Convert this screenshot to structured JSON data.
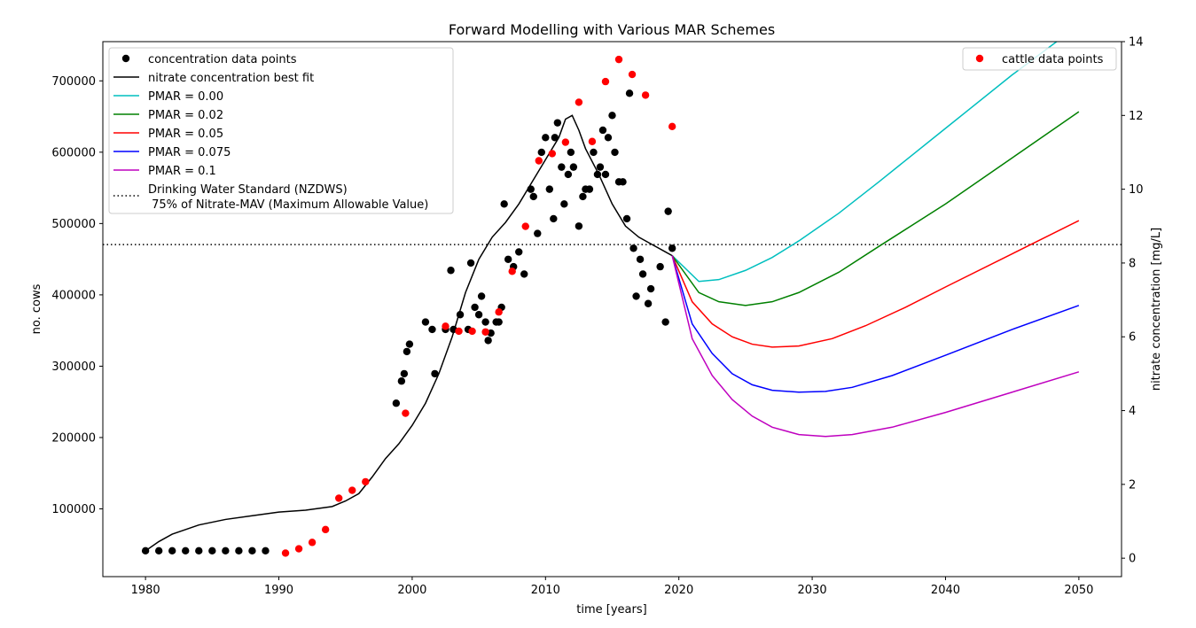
{
  "chart_data": {
    "type": "line",
    "title": "Forward Modelling with Various MAR Schemes",
    "xlabel": "time [years]",
    "ylabel_left": "no. cows",
    "ylabel_right": "nitrate concentration [mg/L]",
    "xlim": [
      1976.8,
      2053.2
    ],
    "ylim_left": [
      5000,
      755000
    ],
    "ylim_right": [
      -0.5,
      14
    ],
    "x_ticks": [
      "1980",
      "1990",
      "2000",
      "2010",
      "2020",
      "2030",
      "2040",
      "2050"
    ],
    "y_left_ticks": [
      "100000",
      "200000",
      "300000",
      "400000",
      "500000",
      "600000",
      "700000"
    ],
    "y_right_ticks": [
      "0",
      "2",
      "4",
      "6",
      "8",
      "10",
      "12",
      "14"
    ],
    "legend_left": [
      {
        "label": "concentration data points",
        "color": "#000000",
        "kind": "marker"
      },
      {
        "label": "nitrate concentration best fit",
        "color": "#000000",
        "kind": "line"
      },
      {
        "label": "PMAR = 0.00",
        "color": "#00bfbf",
        "kind": "line"
      },
      {
        "label": "PMAR = 0.02",
        "color": "#008000",
        "kind": "line"
      },
      {
        "label": "PMAR = 0.05",
        "color": "#ff0000",
        "kind": "line"
      },
      {
        "label": "PMAR = 0.075",
        "color": "#0000ff",
        "kind": "line"
      },
      {
        "label": "PMAR = 0.1",
        "color": "#bf00bf",
        "kind": "line"
      },
      {
        "label": "Drinking Water Standard (NZDWS)",
        "label2": " 75% of Nitrate-MAV (Maximum Allowable Value)",
        "color": "#000000",
        "kind": "dotted"
      }
    ],
    "legend_right": [
      {
        "label": "cattle data points",
        "color": "#ff0000",
        "kind": "marker"
      }
    ],
    "reference_line": {
      "axis": "right",
      "value": 8.5,
      "style": "dotted"
    },
    "concentration_points": {
      "axis": "right",
      "x": [
        1980,
        1981,
        1982,
        1983,
        1984,
        1985,
        1986,
        1987,
        1988,
        1989,
        1998.8,
        1999.2,
        1999.4,
        1999.6,
        1999.8,
        2001,
        2001.5,
        2001.7,
        2002.5,
        2002.9,
        2003.1,
        2003.6,
        2004.2,
        2004.4,
        2004.7,
        2005,
        2005.2,
        2005.5,
        2005.7,
        2005.9,
        2006.3,
        2006.5,
        2006.7,
        2006.9,
        2007.2,
        2007.6,
        2008,
        2008.4,
        2008.9,
        2009.1,
        2009.4,
        2009.7,
        2010,
        2010.3,
        2010.6,
        2010.7,
        2010.9,
        2011.2,
        2011.4,
        2011.7,
        2011.9,
        2012.1,
        2012.5,
        2012.8,
        2013,
        2013.3,
        2013.6,
        2013.9,
        2014.1,
        2014.3,
        2014.5,
        2014.7,
        2015,
        2015.2,
        2015.5,
        2015.8,
        2016.1,
        2016.3,
        2016.6,
        2016.8,
        2017.1,
        2017.3,
        2017.7,
        2017.9,
        2018.6,
        2019,
        2019.2,
        2019.5
      ],
      "y": [
        0.2,
        0.2,
        0.2,
        0.2,
        0.2,
        0.2,
        0.2,
        0.2,
        0.2,
        0.2,
        4.2,
        4.8,
        5.0,
        5.6,
        5.8,
        6.4,
        6.2,
        5.0,
        6.2,
        7.8,
        6.2,
        6.6,
        6.2,
        8.0,
        6.8,
        6.6,
        7.1,
        6.4,
        5.9,
        6.1,
        6.4,
        6.4,
        6.8,
        9.6,
        8.1,
        7.9,
        8.3,
        7.7,
        10.0,
        9.8,
        8.8,
        11.0,
        11.4,
        10.0,
        9.2,
        11.4,
        11.8,
        10.6,
        9.6,
        10.4,
        11.0,
        10.6,
        9.0,
        9.8,
        10.0,
        10.0,
        11.0,
        10.4,
        10.6,
        11.6,
        10.4,
        11.4,
        12.0,
        11.0,
        10.2,
        10.2,
        9.2,
        12.6,
        8.4,
        7.1,
        8.1,
        7.7,
        6.9,
        7.3,
        7.9,
        6.4,
        9.4,
        8.4
      ]
    },
    "cattle_points": {
      "axis": "left",
      "x": [
        1990.5,
        1991.5,
        1992.5,
        1993.5,
        1994.5,
        1995.5,
        1996.5,
        1999.5,
        2002.5,
        2003.5,
        2004.5,
        2005.5,
        2006.5,
        2007.5,
        2008.5,
        2009.5,
        2010.5,
        2011.5,
        2012.5,
        2013.5,
        2014.5,
        2015.5,
        2016.5,
        2017.5,
        2019.5
      ],
      "y": [
        38000,
        44000,
        53000,
        71000,
        115000,
        126000,
        138000,
        234000,
        356000,
        349000,
        349000,
        348000,
        376000,
        433000,
        496000,
        588000,
        598000,
        614000,
        670000,
        615000,
        699000,
        730000,
        709000,
        680000,
        636000
      ]
    },
    "best_fit": {
      "axis": "right",
      "x": [
        1980,
        1981,
        1982,
        1984,
        1986,
        1988,
        1990,
        1992,
        1994,
        1995,
        1996,
        1997,
        1998,
        1999,
        2000,
        2001,
        2002,
        2003,
        2004,
        2005,
        2006,
        2007,
        2008,
        2009,
        2010,
        2011,
        2011.5,
        2012,
        2012.5,
        2013,
        2014,
        2015,
        2016,
        2017,
        2018,
        2019,
        2019.5
      ],
      "y": [
        0.2,
        0.45,
        0.65,
        0.9,
        1.05,
        1.15,
        1.25,
        1.3,
        1.4,
        1.55,
        1.75,
        2.2,
        2.7,
        3.1,
        3.6,
        4.2,
        5.0,
        6.0,
        7.2,
        8.1,
        8.7,
        9.1,
        9.6,
        10.2,
        10.8,
        11.4,
        11.9,
        12.0,
        11.6,
        11.1,
        10.4,
        9.6,
        9.0,
        8.7,
        8.5,
        8.3,
        8.2
      ]
    },
    "series": [
      {
        "name": "PMAR = 0.00",
        "color": "#00bfbf",
        "x": [
          2019.5,
          2021.5,
          2023,
          2025,
          2027,
          2029,
          2032,
          2035,
          2040,
          2045,
          2050
        ],
        "y": [
          8.2,
          7.5,
          7.55,
          7.8,
          8.15,
          8.6,
          9.35,
          10.2,
          11.65,
          13.1,
          14.45
        ]
      },
      {
        "name": "PMAR = 0.02",
        "color": "#008000",
        "x": [
          2019.5,
          2021.5,
          2023,
          2025,
          2027,
          2029,
          2032,
          2035,
          2040,
          2045,
          2050
        ],
        "y": [
          8.2,
          7.2,
          6.95,
          6.85,
          6.95,
          7.2,
          7.75,
          8.45,
          9.6,
          10.85,
          12.1
        ]
      },
      {
        "name": "PMAR = 0.05",
        "color": "#ff0000",
        "x": [
          2019.5,
          2021,
          2022.5,
          2024,
          2025.5,
          2027,
          2029,
          2031.5,
          2034,
          2037,
          2040,
          2045,
          2050
        ],
        "y": [
          8.2,
          6.95,
          6.35,
          6.0,
          5.8,
          5.72,
          5.75,
          5.95,
          6.3,
          6.8,
          7.35,
          8.25,
          9.15
        ]
      },
      {
        "name": "PMAR = 0.075",
        "color": "#0000ff",
        "x": [
          2019.5,
          2021,
          2022.5,
          2024,
          2025.5,
          2027,
          2029,
          2031,
          2033,
          2036,
          2040,
          2045,
          2050
        ],
        "y": [
          8.2,
          6.35,
          5.55,
          5.0,
          4.7,
          4.55,
          4.5,
          4.52,
          4.63,
          4.95,
          5.5,
          6.2,
          6.85
        ]
      },
      {
        "name": "PMAR = 0.1",
        "color": "#bf00bf",
        "x": [
          2019.5,
          2021,
          2022.5,
          2024,
          2025.5,
          2027,
          2029,
          2031,
          2033,
          2036,
          2040,
          2045,
          2050
        ],
        "y": [
          8.2,
          5.95,
          4.95,
          4.3,
          3.85,
          3.55,
          3.35,
          3.3,
          3.35,
          3.55,
          3.95,
          4.5,
          5.05
        ]
      }
    ]
  }
}
